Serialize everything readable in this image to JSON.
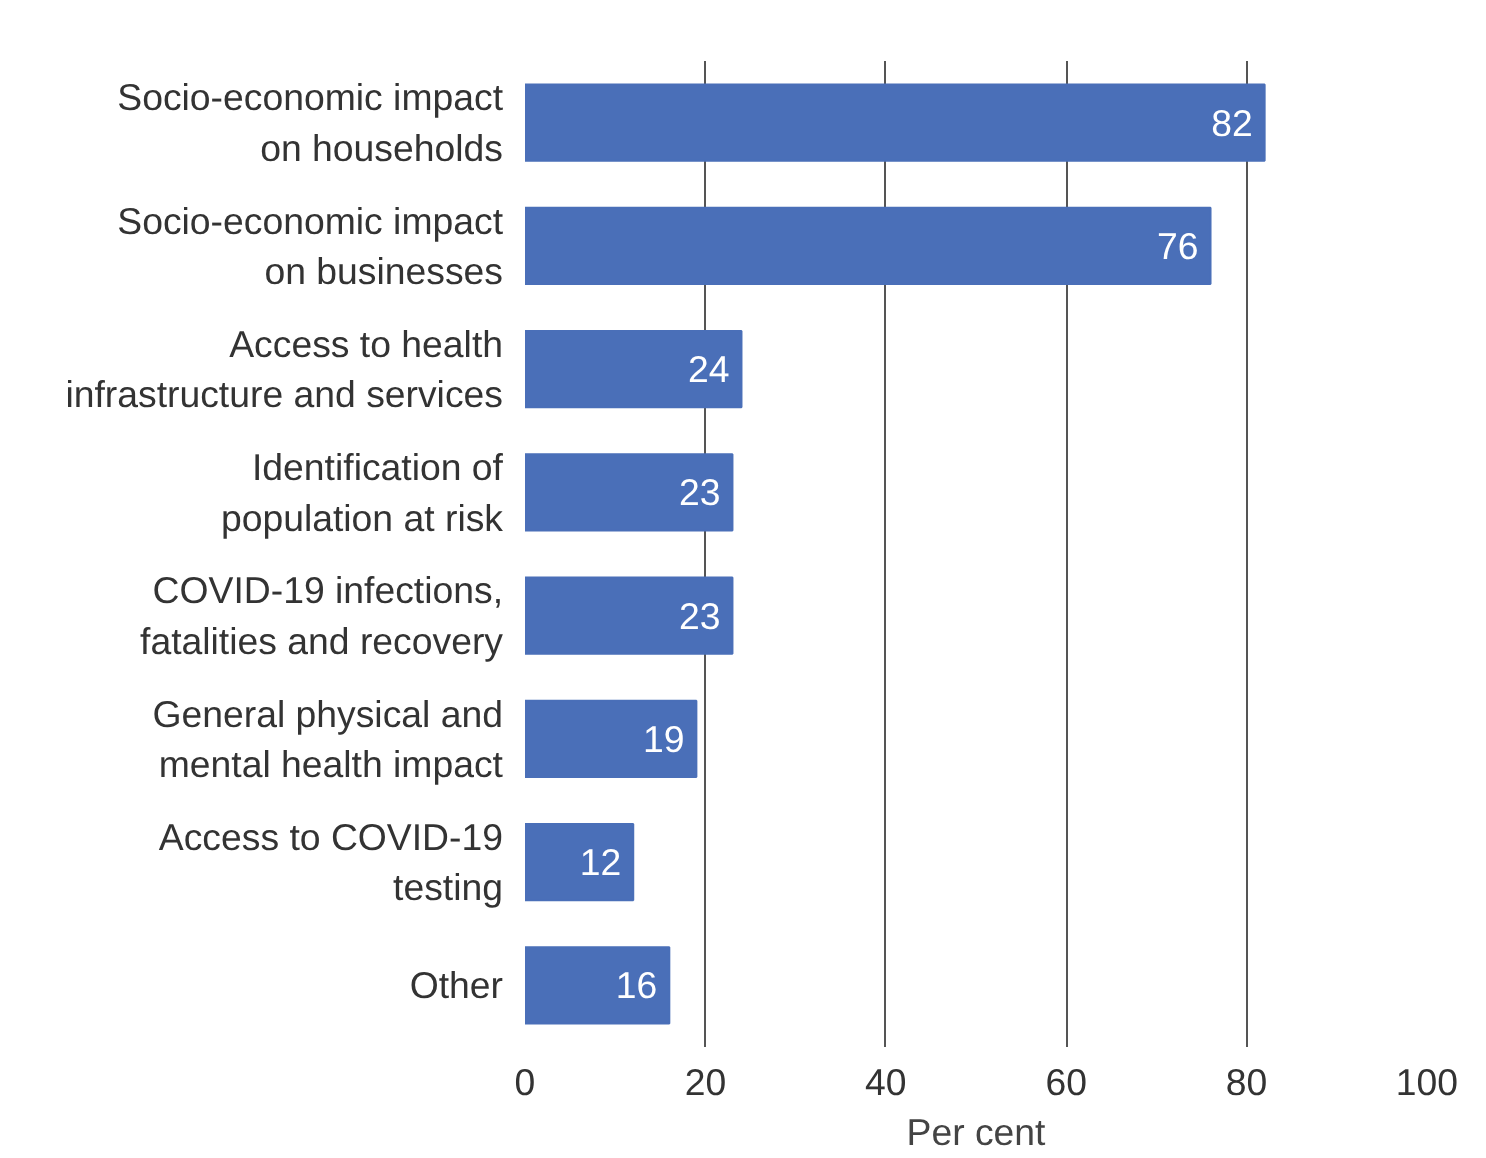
{
  "chart_data": {
    "type": "bar",
    "orientation": "horizontal",
    "xlabel": "Per cent",
    "categories": [
      "Socio-economic impact\non households",
      "Socio-economic impact\non businesses",
      "Access to health\ninfrastructure and services",
      "Identification of\npopulation at risk",
      "COVID-19 infections,\nfatalities and recovery",
      "General physical and\nmental health impact",
      "Access to COVID-19\ntesting",
      "Other"
    ],
    "values": [
      82,
      76,
      24,
      23,
      23,
      19,
      12,
      16
    ],
    "color": "#4a6fb8",
    "data_labels": true,
    "xlim": [
      0,
      100
    ],
    "xticks": [
      0,
      20,
      40,
      60,
      80,
      100
    ],
    "grid": "x"
  }
}
